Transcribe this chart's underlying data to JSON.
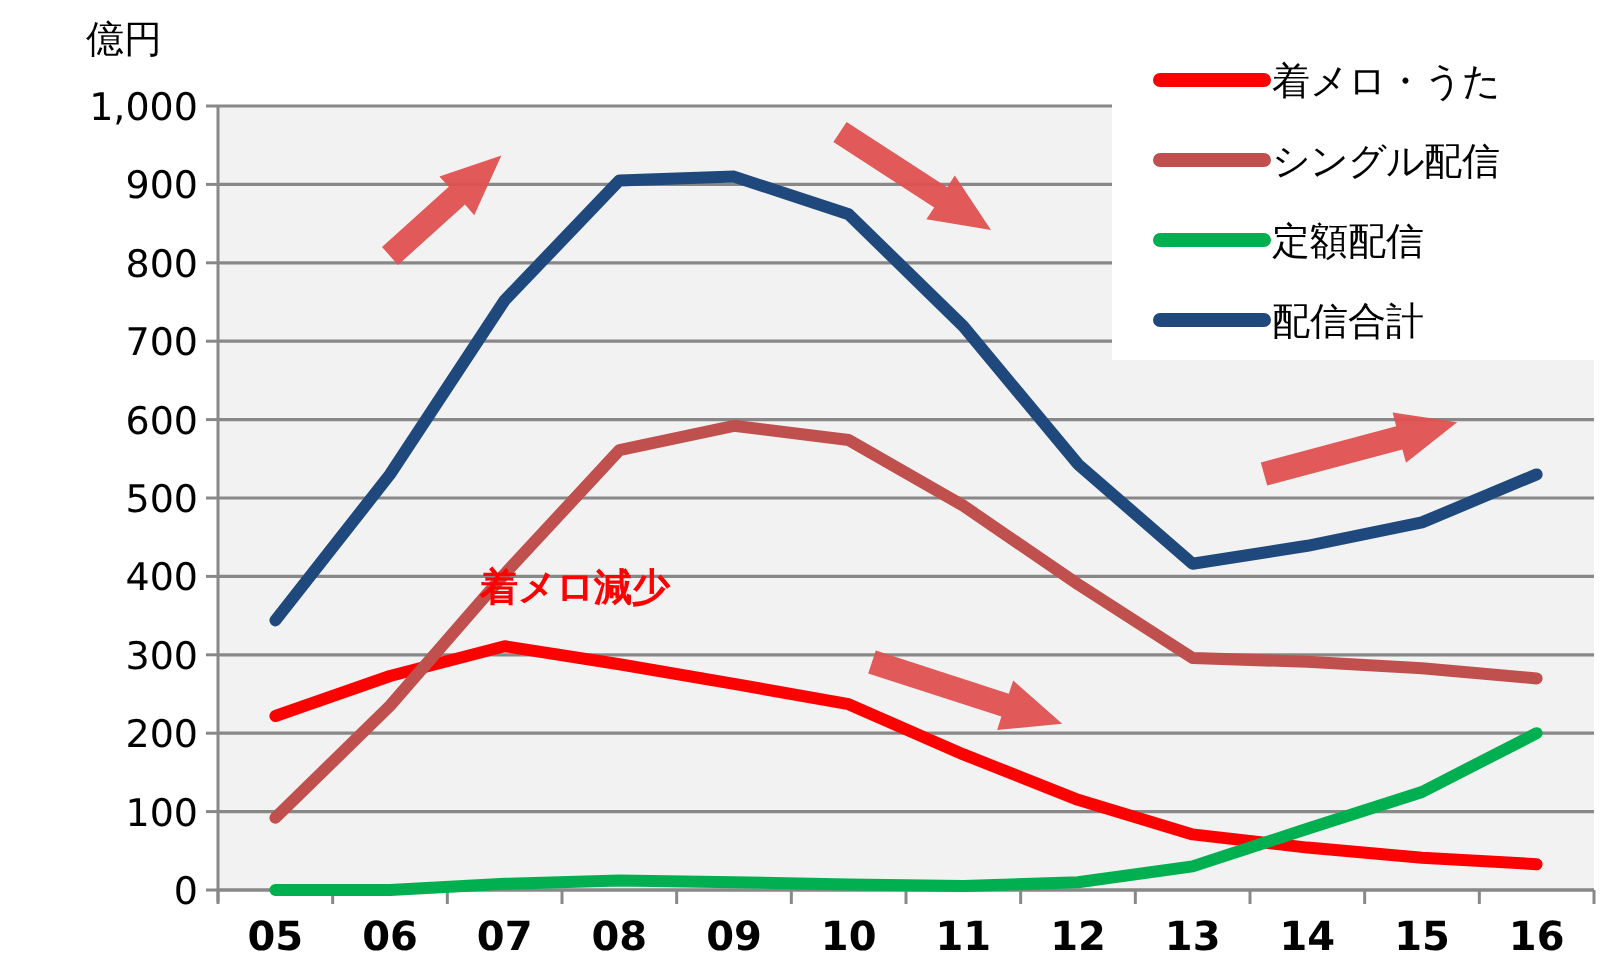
{
  "chart_data": {
    "type": "line",
    "ylabel": "億円",
    "categories": [
      "05",
      "06",
      "07",
      "08",
      "09",
      "10",
      "11",
      "12",
      "13",
      "14",
      "15",
      "16"
    ],
    "series": [
      {
        "name": "着メロ・うた",
        "color": "#ff0000",
        "values": [
          222,
          273,
          311,
          288,
          263,
          237,
          173,
          115,
          71,
          54,
          41,
          33
        ]
      },
      {
        "name": "シングル配信",
        "color": "#c0504d",
        "values": [
          92,
          235,
          403,
          561,
          592,
          574,
          490,
          390,
          296,
          291,
          283,
          270
        ]
      },
      {
        "name": "定額配信",
        "color": "#00b050",
        "values": [
          0,
          0,
          8,
          12,
          10,
          7,
          5,
          10,
          30,
          78,
          125,
          200
        ]
      },
      {
        "name": "配信合計",
        "color": "#1f497d",
        "values": [
          344,
          530,
          752,
          905,
          910,
          862,
          719,
          543,
          416,
          439,
          469,
          530
        ]
      }
    ],
    "ylim": [
      0,
      1000
    ],
    "yticks": [
      0,
      100,
      200,
      300,
      400,
      500,
      600,
      700,
      800,
      900,
      {
        "value": 1000,
        "label": "1,000"
      }
    ],
    "grid": "y",
    "legend": "top right",
    "marker": "none",
    "line_style": "solid",
    "annotations": [
      "着メロ減少"
    ]
  }
}
